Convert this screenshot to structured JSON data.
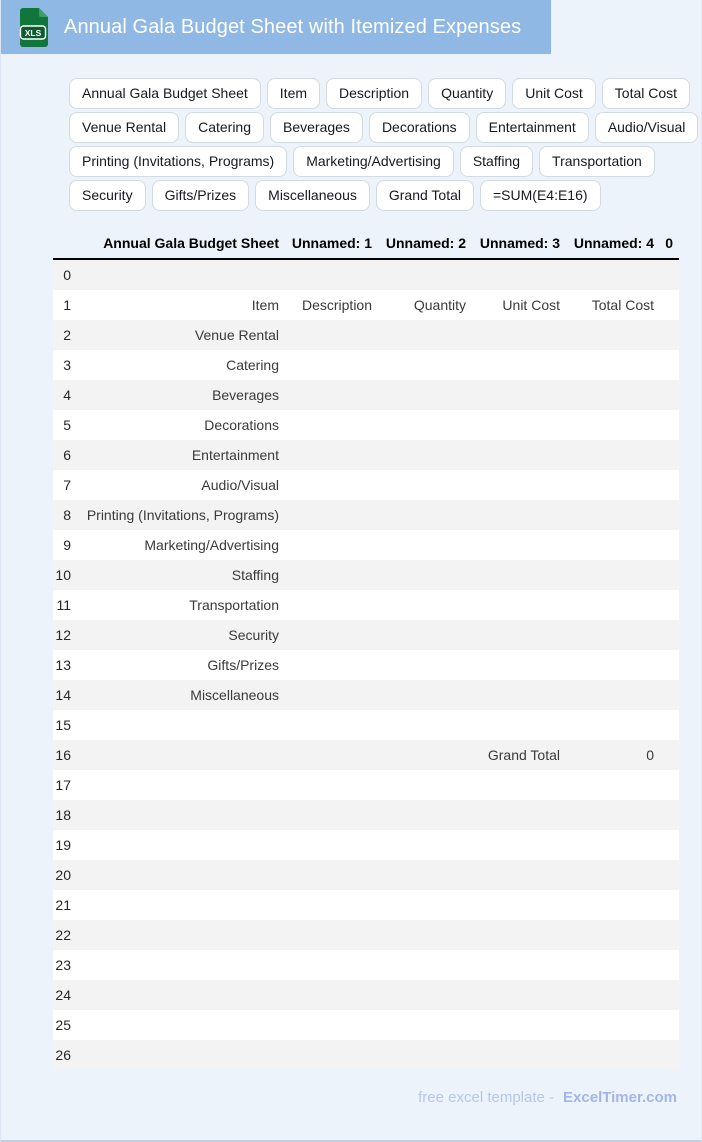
{
  "header": {
    "title": "Annual Gala Budget Sheet with Itemized Expenses",
    "file_icon_label": "XLS"
  },
  "tag_rows": [
    [
      "Annual Gala Budget Sheet",
      "Item",
      "Description",
      "Quantity",
      "Unit Cost",
      "Total Cost"
    ],
    [
      "Venue Rental",
      "Catering",
      "Beverages",
      "Decorations",
      "Entertainment",
      "Audio/Visual"
    ],
    [
      "Printing (Invitations, Programs)",
      "Marketing/Advertising",
      "Staffing",
      "Transportation"
    ],
    [
      "Security",
      "Gifts/Prizes",
      "Miscellaneous",
      "Grand Total",
      "=SUM(E4:E16)"
    ]
  ],
  "table": {
    "columns": [
      "Annual Gala Budget Sheet",
      "Unnamed: 1",
      "Unnamed: 2",
      "Unnamed: 3",
      "Unnamed: 4",
      "0"
    ],
    "rows": [
      {
        "index": "0",
        "cells": [
          "",
          "",
          "",
          "",
          "",
          ""
        ]
      },
      {
        "index": "1",
        "cells": [
          "Item",
          "Description",
          "Quantity",
          "Unit Cost",
          "Total Cost",
          ""
        ]
      },
      {
        "index": "2",
        "cells": [
          "Venue Rental",
          "",
          "",
          "",
          "",
          ""
        ]
      },
      {
        "index": "3",
        "cells": [
          "Catering",
          "",
          "",
          "",
          "",
          ""
        ]
      },
      {
        "index": "4",
        "cells": [
          "Beverages",
          "",
          "",
          "",
          "",
          ""
        ]
      },
      {
        "index": "5",
        "cells": [
          "Decorations",
          "",
          "",
          "",
          "",
          ""
        ]
      },
      {
        "index": "6",
        "cells": [
          "Entertainment",
          "",
          "",
          "",
          "",
          ""
        ]
      },
      {
        "index": "7",
        "cells": [
          "Audio/Visual",
          "",
          "",
          "",
          "",
          ""
        ]
      },
      {
        "index": "8",
        "cells": [
          "Printing (Invitations, Programs)",
          "",
          "",
          "",
          "",
          ""
        ]
      },
      {
        "index": "9",
        "cells": [
          "Marketing/Advertising",
          "",
          "",
          "",
          "",
          ""
        ]
      },
      {
        "index": "10",
        "cells": [
          "Staffing",
          "",
          "",
          "",
          "",
          ""
        ]
      },
      {
        "index": "11",
        "cells": [
          "Transportation",
          "",
          "",
          "",
          "",
          ""
        ]
      },
      {
        "index": "12",
        "cells": [
          "Security",
          "",
          "",
          "",
          "",
          ""
        ]
      },
      {
        "index": "13",
        "cells": [
          "Gifts/Prizes",
          "",
          "",
          "",
          "",
          ""
        ]
      },
      {
        "index": "14",
        "cells": [
          "Miscellaneous",
          "",
          "",
          "",
          "",
          ""
        ]
      },
      {
        "index": "15",
        "cells": [
          "",
          "",
          "",
          "",
          "",
          ""
        ]
      },
      {
        "index": "16",
        "cells": [
          "",
          "",
          "",
          "Grand Total",
          "0",
          ""
        ]
      },
      {
        "index": "17",
        "cells": [
          "",
          "",
          "",
          "",
          "",
          ""
        ]
      },
      {
        "index": "18",
        "cells": [
          "",
          "",
          "",
          "",
          "",
          ""
        ]
      },
      {
        "index": "19",
        "cells": [
          "",
          "",
          "",
          "",
          "",
          ""
        ]
      },
      {
        "index": "20",
        "cells": [
          "",
          "",
          "",
          "",
          "",
          ""
        ]
      },
      {
        "index": "21",
        "cells": [
          "",
          "",
          "",
          "",
          "",
          ""
        ]
      },
      {
        "index": "22",
        "cells": [
          "",
          "",
          "",
          "",
          "",
          ""
        ]
      },
      {
        "index": "23",
        "cells": [
          "",
          "",
          "",
          "",
          "",
          ""
        ]
      },
      {
        "index": "24",
        "cells": [
          "",
          "",
          "",
          "",
          "",
          ""
        ]
      },
      {
        "index": "25",
        "cells": [
          "",
          "",
          "",
          "",
          "",
          ""
        ]
      },
      {
        "index": "26",
        "cells": [
          "",
          "",
          "",
          "",
          "",
          ""
        ]
      }
    ]
  },
  "footer": {
    "text": "free excel template -",
    "brand": "ExcelTimer.com"
  },
  "colors": {
    "banner_blue": "#8fb9e4",
    "page_background": "#edf3fb",
    "zebra_stripe": "#f3f3f3",
    "header_rule": "#000000",
    "icon_green": "#11763c",
    "icon_label_green": "#0b5c2e",
    "footer_text": "#b7c4ef",
    "footer_brand": "#a3b5e9"
  }
}
